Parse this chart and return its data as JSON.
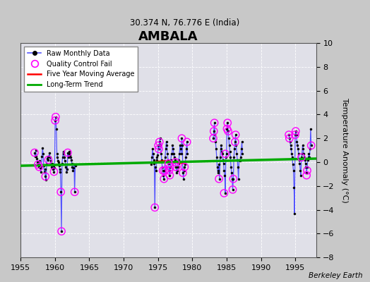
{
  "title": "AMBALA",
  "subtitle": "30.374 N, 76.776 E (India)",
  "ylabel": "Temperature Anomaly (°C)",
  "credit": "Berkeley Earth",
  "xlim": [
    1955,
    1998
  ],
  "ylim": [
    -8,
    10
  ],
  "yticks": [
    -8,
    -6,
    -4,
    -2,
    0,
    2,
    4,
    6,
    8,
    10
  ],
  "xticks": [
    1955,
    1960,
    1965,
    1970,
    1975,
    1980,
    1985,
    1990,
    1995
  ],
  "plot_bg": "#e0e0e8",
  "fig_bg": "#c8c8c8",
  "grid_color": "#ffffff",
  "raw_color": "#5555ff",
  "dot_color": "#000000",
  "qc_color": "#ff00ff",
  "ma_color": "#ff0000",
  "trend_color": "#00aa00",
  "raw_monthly_x": [
    1957.04,
    1957.12,
    1957.21,
    1957.29,
    1957.37,
    1957.46,
    1957.54,
    1957.62,
    1957.71,
    1957.79,
    1957.87,
    1957.96,
    1958.04,
    1958.12,
    1958.21,
    1958.29,
    1958.37,
    1958.46,
    1958.54,
    1958.62,
    1958.71,
    1958.79,
    1958.87,
    1958.96,
    1959.04,
    1959.12,
    1959.21,
    1959.29,
    1959.37,
    1959.46,
    1959.54,
    1959.62,
    1959.71,
    1959.79,
    1959.87,
    1959.96,
    1960.04,
    1960.12,
    1960.21,
    1960.29,
    1960.37,
    1960.46,
    1960.54,
    1960.62,
    1960.71,
    1960.79,
    1960.87,
    1960.96,
    1961.04,
    1961.12,
    1961.21,
    1961.29,
    1961.37,
    1961.46,
    1961.54,
    1961.62,
    1961.71,
    1961.79,
    1961.87,
    1961.96,
    1962.04,
    1962.12,
    1962.21,
    1962.29,
    1962.37,
    1962.46,
    1962.54,
    1962.62,
    1962.71,
    1962.79,
    1962.87,
    1962.96,
    1974.04,
    1974.12,
    1974.21,
    1974.29,
    1974.37,
    1974.46,
    1974.54,
    1974.62,
    1974.71,
    1974.79,
    1974.87,
    1974.96,
    1975.04,
    1975.12,
    1975.21,
    1975.29,
    1975.37,
    1975.46,
    1975.54,
    1975.62,
    1975.71,
    1975.79,
    1975.87,
    1975.96,
    1976.04,
    1976.12,
    1976.21,
    1976.29,
    1976.37,
    1976.46,
    1976.54,
    1976.62,
    1976.71,
    1976.79,
    1976.87,
    1976.96,
    1977.04,
    1977.12,
    1977.21,
    1977.29,
    1977.37,
    1977.46,
    1977.54,
    1977.62,
    1977.71,
    1977.79,
    1977.87,
    1977.96,
    1978.04,
    1978.12,
    1978.21,
    1978.29,
    1978.37,
    1978.46,
    1978.54,
    1978.62,
    1978.71,
    1978.79,
    1978.87,
    1978.96,
    1979.04,
    1979.12,
    1979.21,
    1979.29,
    1983.04,
    1983.12,
    1983.21,
    1983.29,
    1983.37,
    1983.46,
    1983.54,
    1983.62,
    1983.71,
    1983.79,
    1983.87,
    1983.96,
    1984.04,
    1984.12,
    1984.21,
    1984.29,
    1984.37,
    1984.46,
    1984.54,
    1984.62,
    1984.71,
    1984.79,
    1984.87,
    1984.96,
    1985.04,
    1985.12,
    1985.21,
    1985.29,
    1985.37,
    1985.46,
    1985.54,
    1985.62,
    1985.71,
    1985.79,
    1985.87,
    1985.96,
    1986.04,
    1986.12,
    1986.21,
    1986.29,
    1986.37,
    1986.46,
    1986.54,
    1986.62,
    1986.71,
    1986.79,
    1986.87,
    1986.96,
    1987.04,
    1987.12,
    1987.21,
    1987.29,
    1994.04,
    1994.12,
    1994.21,
    1994.29,
    1994.37,
    1994.46,
    1994.54,
    1994.62,
    1994.71,
    1994.79,
    1994.87,
    1994.96,
    1995.04,
    1995.12,
    1995.21,
    1995.29,
    1995.37,
    1995.46,
    1995.54,
    1995.62,
    1995.71,
    1995.79,
    1995.87,
    1995.96,
    1996.04,
    1996.12,
    1996.21,
    1996.29,
    1996.37,
    1996.46,
    1996.54,
    1996.62,
    1996.71,
    1996.79,
    1996.87,
    1996.96,
    1997.04,
    1997.12,
    1997.21,
    1997.29
  ],
  "raw_monthly_y": [
    0.8,
    0.5,
    1.0,
    0.5,
    0.3,
    0.0,
    -0.2,
    -0.3,
    -0.4,
    0.1,
    -0.5,
    -0.8,
    -0.3,
    0.5,
    1.2,
    0.7,
    -0.3,
    -0.8,
    -0.6,
    -1.2,
    -1.5,
    -0.2,
    0.3,
    0.5,
    0.2,
    0.5,
    0.8,
    0.4,
    0.1,
    -0.2,
    -0.4,
    -0.1,
    -0.6,
    -0.3,
    -0.8,
    -0.5,
    3.5,
    3.8,
    2.8,
    0.7,
    0.4,
    0.1,
    0.0,
    -0.3,
    -0.8,
    -0.6,
    -2.5,
    -5.8,
    -0.1,
    0.4,
    0.9,
    0.7,
    0.4,
    0.1,
    -0.2,
    -0.4,
    -0.8,
    -0.6,
    0.8,
    0.4,
    0.9,
    0.7,
    0.6,
    0.4,
    0.2,
    -0.1,
    -0.4,
    -0.7,
    -0.5,
    -0.2,
    -2.5,
    -0.3,
    -0.2,
    0.4,
    1.1,
    0.7,
    0.2,
    -0.1,
    -3.8,
    -0.4,
    -0.7,
    0.2,
    0.4,
    0.6,
    1.4,
    1.1,
    1.7,
    2.0,
    1.4,
    0.7,
    0.2,
    -0.4,
    -0.7,
    -1.1,
    -1.4,
    -0.7,
    0.4,
    1.1,
    1.7,
    1.4,
    0.7,
    0.2,
    -0.1,
    -0.7,
    -1.1,
    -0.4,
    0.2,
    0.7,
    0.7,
    1.4,
    1.1,
    0.7,
    0.4,
    0.2,
    0.0,
    -0.4,
    -0.9,
    -0.7,
    -0.4,
    -0.1,
    0.2,
    0.7,
    1.4,
    1.1,
    0.7,
    2.0,
    1.4,
    -0.9,
    -1.4,
    -0.7,
    -0.4,
    -0.2,
    0.4,
    1.1,
    1.7,
    0.7,
    2.0,
    2.6,
    3.3,
    2.3,
    1.7,
    1.1,
    0.4,
    -0.4,
    -0.9,
    -0.7,
    -0.2,
    -1.4,
    0.4,
    1.1,
    1.4,
    0.9,
    0.7,
    0.2,
    -0.1,
    -0.7,
    -1.1,
    -2.6,
    0.4,
    0.7,
    2.8,
    3.3,
    2.6,
    2.0,
    1.4,
    0.9,
    0.4,
    -0.4,
    -0.9,
    -1.4,
    -2.3,
    -1.4,
    0.4,
    1.1,
    1.7,
    2.3,
    1.4,
    0.7,
    0.2,
    -0.4,
    -1.4,
    0.2,
    0.2,
    0.1,
    0.4,
    1.1,
    1.7,
    0.7,
    2.3,
    2.0,
    1.7,
    1.4,
    1.1,
    0.7,
    0.4,
    -0.2,
    -0.7,
    -2.1,
    -4.3,
    2.3,
    2.6,
    2.3,
    1.7,
    1.4,
    1.1,
    0.7,
    0.2,
    -0.1,
    -0.7,
    -1.1,
    0.4,
    0.7,
    1.4,
    1.1,
    0.7,
    0.4,
    0.2,
    -0.1,
    -0.4,
    -0.9,
    -0.4,
    0.2,
    0.4,
    0.7,
    0.4,
    1.1,
    2.8,
    1.4
  ],
  "qc_fail_x": [
    1957.04,
    1957.54,
    1957.71,
    1958.62,
    1959.04,
    1959.87,
    1960.04,
    1960.12,
    1960.87,
    1960.96,
    1961.87,
    1962.87,
    1974.54,
    1975.04,
    1975.12,
    1975.21,
    1975.71,
    1975.87,
    1975.96,
    1976.54,
    1976.62,
    1976.71,
    1976.79,
    1977.54,
    1977.62,
    1978.46,
    1978.62,
    1978.87,
    1979.21,
    1983.04,
    1983.12,
    1983.21,
    1983.87,
    1984.62,
    1984.79,
    1985.04,
    1985.12,
    1985.21,
    1985.87,
    1985.96,
    1986.21,
    1986.29,
    1994.04,
    1994.12,
    1994.96,
    1995.04,
    1995.87,
    1996.62,
    1996.71,
    1997.29
  ],
  "qc_fail_y": [
    0.8,
    -0.2,
    -0.4,
    -1.2,
    0.2,
    -0.8,
    3.5,
    3.8,
    -2.5,
    -5.8,
    0.8,
    -2.5,
    -3.8,
    1.4,
    1.1,
    1.7,
    -0.7,
    -1.4,
    -0.7,
    -0.1,
    -0.7,
    -1.1,
    -0.4,
    0.0,
    -0.4,
    2.0,
    -0.9,
    -0.4,
    1.7,
    2.0,
    2.6,
    3.3,
    -1.4,
    -2.6,
    0.7,
    2.8,
    3.3,
    2.6,
    -2.3,
    -1.4,
    1.7,
    2.3,
    2.3,
    2.0,
    2.3,
    2.6,
    0.4,
    -1.1,
    -0.7,
    1.4
  ],
  "five_year_ma_x": [
    1974.0,
    1975.0,
    1976.0,
    1977.0,
    1978.0,
    1979.0
  ],
  "five_year_ma_y": [
    -0.05,
    0.05,
    0.1,
    0.05,
    -0.05,
    -0.1
  ],
  "trend_x": [
    1955,
    1998
  ],
  "trend_y": [
    -0.3,
    0.3
  ]
}
